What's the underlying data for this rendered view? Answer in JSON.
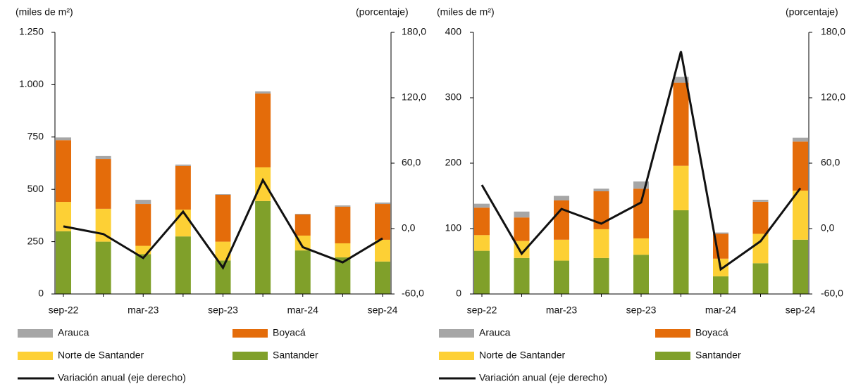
{
  "chart_data": [
    {
      "type": "bar",
      "y_label": "(miles de m²)",
      "y2_label": "(porcentaje)",
      "categories": [
        "sep-22",
        null,
        "mar-23",
        null,
        "sep-23",
        null,
        "mar-24",
        null,
        "sep-24"
      ],
      "ylim": [
        0,
        1250
      ],
      "yticks": [
        0,
        250,
        500,
        750,
        {
          "value": 1000,
          "label": "1.000"
        },
        {
          "value": 1250,
          "label": "1.250"
        }
      ],
      "y2lim": [
        -60,
        180
      ],
      "y2ticks": [
        {
          "value": -60,
          "label": "-60,0"
        },
        {
          "value": 0,
          "label": "0,0"
        },
        {
          "value": 60,
          "label": "60,0"
        },
        {
          "value": 120,
          "label": "120,0"
        },
        {
          "value": 180,
          "label": "180,0"
        }
      ],
      "series": [
        {
          "name": "Arauca",
          "color": "#a6a6a6",
          "values": [
            13,
            14,
            20,
            6,
            3,
            10,
            3,
            6,
            7
          ]
        },
        {
          "name": "Boyacá",
          "color": "#e46c0a",
          "values": [
            295,
            238,
            200,
            209,
            224,
            353,
            101,
            175,
            171
          ]
        },
        {
          "name": "Norte de Santander",
          "color": "#fdd035",
          "values": [
            140,
            157,
            40,
            128,
            90,
            161,
            71,
            67,
            104
          ]
        },
        {
          "name": "Santander",
          "color": "#80a02a",
          "values": [
            300,
            250,
            190,
            275,
            160,
            444,
            208,
            175,
            155
          ]
        },
        {
          "name": "Variación anual (eje derecho)",
          "color": "#111111",
          "axis": "y2",
          "values": [
            2,
            -5,
            -27,
            15.5,
            -36,
            44.5,
            -17,
            -31,
            -9
          ]
        }
      ]
    },
    {
      "type": "bar",
      "y_label": "(miles de m²)",
      "y2_label": "(porcentaje)",
      "categories": [
        "sep-22",
        null,
        "mar-23",
        null,
        "sep-23",
        null,
        "mar-24",
        null,
        "sep-24"
      ],
      "ylim": [
        0,
        400
      ],
      "yticks": [
        0,
        100,
        200,
        300,
        400
      ],
      "y2lim": [
        -60,
        180
      ],
      "y2ticks": [
        {
          "value": -60,
          "label": "-60,0"
        },
        {
          "value": 0,
          "label": "0,0"
        },
        {
          "value": 60,
          "label": "60,0"
        },
        {
          "value": 120,
          "label": "120,0"
        },
        {
          "value": 180,
          "label": "180,0"
        }
      ],
      "series": [
        {
          "name": "Arauca",
          "color": "#a6a6a6",
          "values": [
            6,
            9,
            7,
            4,
            11,
            9,
            2,
            3,
            6
          ]
        },
        {
          "name": "Boyacá",
          "color": "#e46c0a",
          "values": [
            42,
            36,
            60,
            58,
            76,
            127,
            38,
            49,
            75
          ]
        },
        {
          "name": "Norte de Santander",
          "color": "#fdd035",
          "values": [
            24,
            26,
            32,
            44,
            25,
            68,
            27,
            45,
            75
          ]
        },
        {
          "name": "Santander",
          "color": "#80a02a",
          "values": [
            66,
            55,
            51,
            55,
            60,
            128,
            27,
            47,
            83
          ]
        },
        {
          "name": "Variación anual (eje derecho)",
          "color": "#111111",
          "axis": "y2",
          "values": [
            40,
            -23,
            18,
            4.5,
            24,
            162.6,
            -37.4,
            -11.6,
            37
          ]
        }
      ]
    }
  ]
}
